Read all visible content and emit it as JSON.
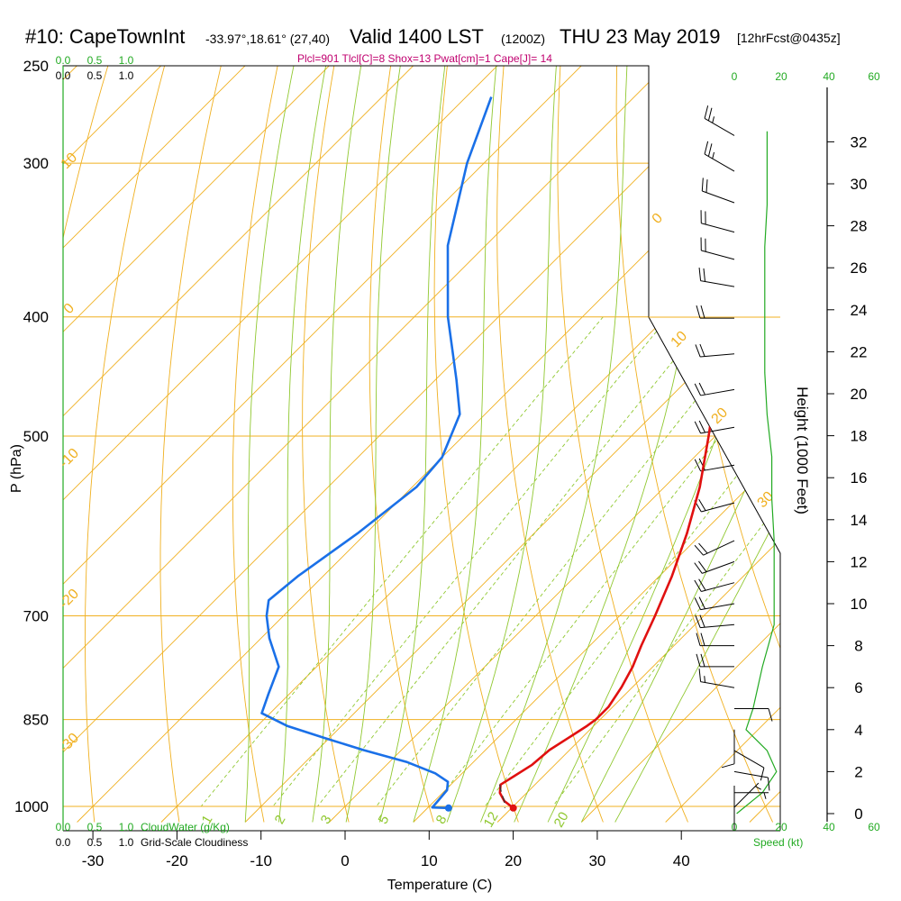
{
  "header": {
    "station": "#10: CapeTownInt",
    "coords": "-33.97°,18.61° (27,40)",
    "valid": "Valid 1400 LST",
    "zulu": "(1200Z)",
    "date": "THU 23 May 2019",
    "fcst": "[12hrFcst@0435z]"
  },
  "params": "Plcl=901 Tlcl[C]=8 Shox=13 Pwat[cm]=1 Cape[J]= 14",
  "colors": {
    "temp": "#e01010",
    "dew": "#1a70e8",
    "isotherm": "#f0b020",
    "dry_adiabat": "#f0b020",
    "moist_adiabat": "#90c830",
    "mixing_ratio": "#90c830",
    "green_text": "#22aa22",
    "parcel_text": "#c0006f"
  },
  "chart_data": {
    "type": "line",
    "xlabel": "Temperature (C)",
    "ylabel": "P (hPa)",
    "right_ylabel": "Height (1000 Feet)",
    "x_ticks": [
      -30,
      -20,
      -10,
      0,
      10,
      20,
      30,
      40
    ],
    "pressure_ticks": [
      250,
      300,
      400,
      500,
      700,
      850,
      1000
    ],
    "pressure_range": [
      250,
      1000
    ],
    "height_ticks": [
      0,
      2,
      4,
      6,
      8,
      10,
      12,
      14,
      16,
      18,
      20,
      22,
      24,
      26,
      28,
      30,
      32
    ],
    "isotherm_labels": [
      "10",
      "0",
      "-10",
      "-20",
      "-30",
      "0",
      "10",
      "20",
      "30"
    ],
    "mixing_ratio_labels": [
      "1",
      "2",
      "3",
      "5",
      "8",
      "12",
      "20"
    ],
    "wind_speed_ticks": [
      "0",
      "20",
      "40",
      "60"
    ],
    "wind_speed_label": "Speed (kt)",
    "cloud_ticks": [
      "0.0",
      "0.5",
      "1.0"
    ],
    "cloud_water_label": "CloudWater (g/Kg)",
    "cloudiness_label": "Grid-Scale Cloudiness",
    "series": [
      {
        "key": "temperature",
        "points": [
          [
            1003,
            20.2
          ],
          [
            990,
            18.3
          ],
          [
            975,
            16.8
          ],
          [
            960,
            15.9
          ],
          [
            945,
            16.5
          ],
          [
            925,
            17.3
          ],
          [
            900,
            17.6
          ],
          [
            880,
            18.4
          ],
          [
            860,
            19.2
          ],
          [
            850,
            19.5
          ],
          [
            830,
            19.5
          ],
          [
            800,
            18.7
          ],
          [
            770,
            17.6
          ],
          [
            740,
            16.1
          ],
          [
            700,
            14.2
          ],
          [
            650,
            11.5
          ],
          [
            600,
            8.2
          ],
          [
            550,
            4.2
          ],
          [
            500,
            -0.8
          ],
          [
            450,
            -6.5
          ],
          [
            400,
            -13.5
          ],
          [
            350,
            -21.5
          ],
          [
            300,
            -30.7
          ],
          [
            265,
            -38
          ]
        ]
      },
      {
        "key": "dewpoint",
        "points": [
          [
            1003,
            12.5
          ],
          [
            1002,
            10.5
          ],
          [
            990,
            10.4
          ],
          [
            970,
            10.2
          ],
          [
            955,
            9.3
          ],
          [
            940,
            6.8
          ],
          [
            920,
            2.0
          ],
          [
            900,
            -4.5
          ],
          [
            880,
            -10.5
          ],
          [
            860,
            -16.5
          ],
          [
            840,
            -21.0
          ],
          [
            810,
            -22.5
          ],
          [
            770,
            -24.5
          ],
          [
            730,
            -29.0
          ],
          [
            700,
            -32.0
          ],
          [
            680,
            -33.6
          ],
          [
            650,
            -33.0
          ],
          [
            600,
            -31.0
          ],
          [
            550,
            -29.5
          ],
          [
            520,
            -30.0
          ],
          [
            480,
            -33.0
          ],
          [
            450,
            -37.5
          ],
          [
            400,
            -46
          ],
          [
            350,
            -54.5
          ],
          [
            300,
            -62
          ],
          [
            265,
            -67
          ]
        ]
      },
      {
        "key": "parcel",
        "points": [
          [
            960,
            15.8
          ],
          [
            975,
            17.0
          ],
          [
            990,
            18.3
          ],
          [
            1003,
            19.2
          ]
        ]
      }
    ],
    "sfc_points": [
      {
        "p": 1003,
        "t": 20.2,
        "kind": "temp"
      },
      {
        "p": 1003,
        "t": 12.5,
        "kind": "dew"
      }
    ],
    "cloud_water": [
      0,
      0,
      0,
      0,
      0,
      0,
      0,
      0,
      0,
      0,
      0,
      0,
      0,
      0,
      0,
      0,
      0,
      0,
      0,
      0,
      0,
      0,
      0,
      0,
      0,
      0
    ],
    "wind_speed_profile": [
      [
        0,
        1
      ],
      [
        1,
        12
      ],
      [
        2,
        18
      ],
      [
        3,
        14
      ],
      [
        4,
        5
      ],
      [
        5,
        8
      ],
      [
        7,
        12
      ],
      [
        9,
        17
      ],
      [
        11,
        17
      ],
      [
        13,
        17
      ],
      [
        15,
        16
      ],
      [
        17,
        16
      ],
      [
        19,
        14
      ],
      [
        21,
        13
      ],
      [
        23,
        13
      ],
      [
        25,
        13
      ],
      [
        27,
        13
      ],
      [
        29,
        14
      ],
      [
        31,
        14
      ],
      [
        32.5,
        14
      ]
    ],
    "wind_barbs": [
      {
        "h": 32.3,
        "dir": 300,
        "spd": 25
      },
      {
        "h": 30.6,
        "dir": 300,
        "spd": 25
      },
      {
        "h": 29.1,
        "dir": 290,
        "spd": 20
      },
      {
        "h": 27.7,
        "dir": 285,
        "spd": 20
      },
      {
        "h": 26.4,
        "dir": 285,
        "spd": 20
      },
      {
        "h": 25.1,
        "dir": 280,
        "spd": 20
      },
      {
        "h": 23.6,
        "dir": 270,
        "spd": 20
      },
      {
        "h": 21.9,
        "dir": 265,
        "spd": 20
      },
      {
        "h": 20.2,
        "dir": 260,
        "spd": 20
      },
      {
        "h": 18.4,
        "dir": 260,
        "spd": 20
      },
      {
        "h": 16.6,
        "dir": 260,
        "spd": 20
      },
      {
        "h": 14.8,
        "dir": 255,
        "spd": 20
      },
      {
        "h": 13.0,
        "dir": 245,
        "spd": 20
      },
      {
        "h": 12.0,
        "dir": 250,
        "spd": 20
      },
      {
        "h": 11.0,
        "dir": 255,
        "spd": 20
      },
      {
        "h": 10.0,
        "dir": 260,
        "spd": 20
      },
      {
        "h": 9.0,
        "dir": 265,
        "spd": 20
      },
      {
        "h": 8.0,
        "dir": 270,
        "spd": 20
      },
      {
        "h": 7.0,
        "dir": 270,
        "spd": 20
      },
      {
        "h": 6.0,
        "dir": 280,
        "spd": 15
      },
      {
        "h": 5.0,
        "dir": 90,
        "spd": 10
      },
      {
        "h": 4.0,
        "dir": 180,
        "spd": 10
      },
      {
        "h": 3.0,
        "dir": 120,
        "spd": 10
      },
      {
        "h": 2.0,
        "dir": 100,
        "spd": 10
      },
      {
        "h": 1.0,
        "dir": 90,
        "spd": 5
      },
      {
        "h": 0.3,
        "dir": 45,
        "spd": 5
      },
      {
        "h": -0.3,
        "dir": 360,
        "spd": 2
      },
      {
        "h": -0.8,
        "dir": 360,
        "spd": 2
      }
    ]
  }
}
